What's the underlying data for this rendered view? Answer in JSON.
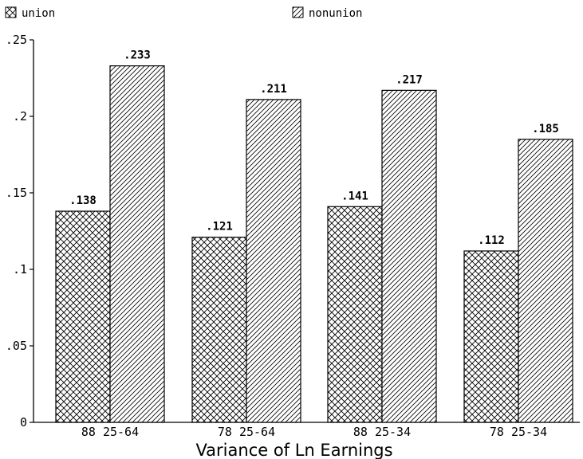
{
  "chart_data": {
    "type": "bar",
    "categories": [
      "88 25-64",
      "78 25-64",
      "88 25-34",
      "78 25-34"
    ],
    "series": [
      {
        "name": "union",
        "values": [
          0.138,
          0.121,
          0.141,
          0.112
        ],
        "data_labels": [
          ".138",
          ".121",
          ".141",
          ".112"
        ],
        "pattern": "crosshatch"
      },
      {
        "name": "nonunion",
        "values": [
          0.233,
          0.211,
          0.217,
          0.185
        ],
        "data_labels": [
          ".233",
          ".211",
          ".217",
          ".185"
        ],
        "pattern": "diagonal"
      }
    ],
    "title": "",
    "xlabel": "Variance of Ln Earnings",
    "ylabel": "",
    "ylim": [
      0,
      0.25
    ],
    "yticks": [
      0,
      0.05,
      0.1,
      0.15,
      0.2,
      0.25
    ],
    "ytick_labels": [
      "0",
      ".05",
      ".1",
      ".15",
      ".2",
      ".25"
    ],
    "legend": {
      "placement": "top",
      "entries": [
        "union",
        "nonunion"
      ]
    },
    "grid": false,
    "colors": {
      "ink": "#000000",
      "background": "#ffffff"
    }
  }
}
